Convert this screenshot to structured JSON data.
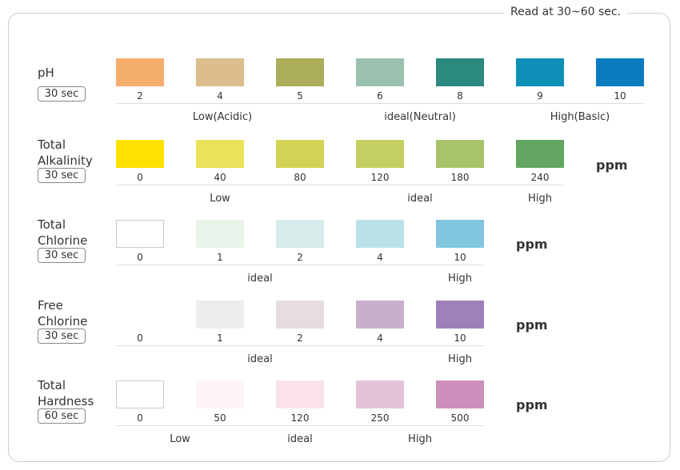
{
  "header": {
    "title": "Read at 30~60 sec."
  },
  "rows": [
    {
      "name": [
        "pH"
      ],
      "time": "30 sec",
      "swatches": [
        {
          "color": "#f5ae6c",
          "label": "2"
        },
        {
          "color": "#dbbd8e",
          "label": "4"
        },
        {
          "color": "#abad58",
          "label": "5"
        },
        {
          "color": "#9ac2ae",
          "label": "6"
        },
        {
          "color": "#2b8a80",
          "label": "8"
        },
        {
          "color": "#0e8fb7",
          "label": "9"
        },
        {
          "color": "#0b7bc0",
          "label": "10"
        }
      ],
      "ranges": [
        "Low(Acidic)",
        "ideal(Neutral)",
        "High(Basic)"
      ]
    },
    {
      "name": [
        "Total",
        "Alkalinity"
      ],
      "time": "30 sec",
      "swatches": [
        {
          "color": "#ffe200",
          "label": "0"
        },
        {
          "color": "#ece15a",
          "label": "40"
        },
        {
          "color": "#d1d455",
          "label": "80"
        },
        {
          "color": "#c4cf61",
          "label": "120"
        },
        {
          "color": "#a8c46a",
          "label": "180"
        },
        {
          "color": "#63a662",
          "label": "240"
        }
      ],
      "ranges": [
        "Low",
        "ideal",
        "High"
      ],
      "unit": "ppm"
    },
    {
      "name": [
        "Total",
        "Chlorine"
      ],
      "time": "30 sec",
      "swatches": [
        {
          "color": "#ffffff",
          "label": "0"
        },
        {
          "color": "#ebf4ea",
          "label": "1"
        },
        {
          "color": "#d6ecea",
          "label": "2"
        },
        {
          "color": "#b8e2e7",
          "label": "4"
        },
        {
          "color": "#7fc6de",
          "label": "10"
        }
      ],
      "ranges": [
        "ideal",
        "High"
      ],
      "unit": "ppm"
    },
    {
      "name": [
        "Free",
        "Chlorine"
      ],
      "time": "30 sec",
      "swatches": [
        {
          "color": null,
          "label": "0"
        },
        {
          "color": "#edecea",
          "label": "1"
        },
        {
          "color": "#e7dde1",
          "label": "2"
        },
        {
          "color": "#c7b0cc",
          "label": "4"
        },
        {
          "color": "#9f80b8",
          "label": "10"
        }
      ],
      "ranges": [
        "ideal",
        "High"
      ],
      "unit": "ppm"
    },
    {
      "name": [
        "Total",
        "Hardness"
      ],
      "time": "60 sec",
      "swatches": [
        {
          "color": "#ffffff",
          "label": "0"
        },
        {
          "color": "#fdf4f8",
          "label": "50"
        },
        {
          "color": "#fbe2e8",
          "label": "120"
        },
        {
          "color": "#e3c2da",
          "label": "250"
        },
        {
          "color": "#cd8fbc",
          "label": "500"
        }
      ],
      "ranges": [
        "Low",
        "ideal",
        "High"
      ],
      "unit": "ppm"
    }
  ]
}
